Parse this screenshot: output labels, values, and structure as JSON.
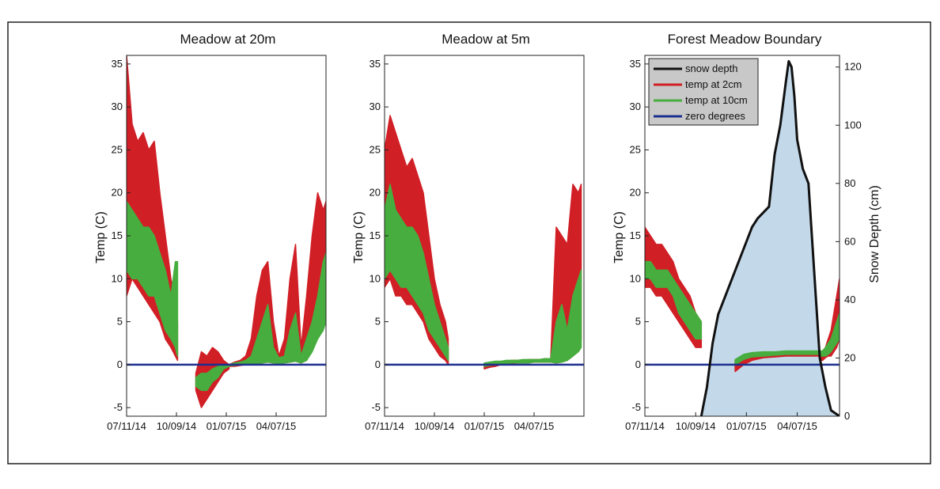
{
  "colors": {
    "temp_2cm": "#d11f26",
    "temp_10cm": "#47ad3f",
    "zero_degrees": "#1c2f8e",
    "snow_depth": "#111111",
    "snow_fill": "#c3d9ea",
    "legend_bg": "#c8c8c8"
  },
  "chart_data": [
    {
      "type": "line",
      "title": "Meadow at 20m",
      "ylabel": "Temp (C)",
      "xlabel": "",
      "ylim": [
        -6,
        36
      ],
      "y_ticks": [
        -5,
        0,
        5,
        10,
        15,
        20,
        25,
        30,
        35
      ],
      "x_tick_labels": [
        "07/11/14",
        "10/09/14",
        "01/07/15",
        "04/07/15"
      ],
      "x_tick_days": [
        0,
        90,
        180,
        270
      ],
      "x_axis_days": [
        0,
        360
      ],
      "grid": false,
      "series": [
        {
          "name": "temp at 2cm",
          "segments": [
            {
              "x_days": [
                0,
                10,
                20,
                30,
                40,
                50,
                60,
                70,
                80,
                88,
                92
              ],
              "daily_max": [
                36,
                28,
                26,
                27,
                25,
                26,
                20,
                15,
                10,
                7,
                5
              ],
              "daily_min": [
                8,
                10,
                9,
                8,
                7,
                6,
                5,
                3,
                2,
                1,
                0.5
              ]
            },
            {
              "x_days": [
                125,
                135,
                145,
                155,
                165,
                175,
                185
              ],
              "daily_max": [
                -1,
                1.5,
                1,
                2,
                1.5,
                0.5,
                0
              ],
              "daily_min": [
                -3,
                -5,
                -4,
                -3,
                -2,
                -1,
                -0.5
              ]
            },
            {
              "x_days": [
                185,
                195,
                205,
                215,
                225,
                235,
                245,
                255,
                265,
                275,
                285,
                295,
                305,
                315,
                325,
                335,
                345,
                355,
                360
              ],
              "daily_max": [
                0,
                0.3,
                0.5,
                1,
                3,
                8,
                11,
                12,
                5,
                1,
                3,
                10,
                14,
                2,
                8,
                15,
                20,
                18,
                19
              ],
              "daily_min": [
                -0.2,
                -0.2,
                -0.1,
                0,
                0,
                0,
                0.2,
                0.3,
                0.2,
                0.1,
                0.2,
                0.3,
                0.4,
                0.2,
                0.5,
                2,
                4,
                5,
                6
              ]
            }
          ]
        },
        {
          "name": "temp at 10cm",
          "segments": [
            {
              "x_days": [
                0,
                10,
                20,
                30,
                40,
                50,
                60,
                70,
                80,
                88,
                92
              ],
              "daily_max": [
                19,
                18,
                17,
                16,
                16,
                15,
                13,
                11,
                8,
                12,
                12
              ],
              "daily_min": [
                11,
                10,
                10,
                9,
                8,
                8,
                6,
                4,
                3,
                2,
                1
              ]
            },
            {
              "x_days": [
                125,
                135,
                145,
                155,
                165,
                175,
                185
              ],
              "daily_max": [
                -1.5,
                -1,
                -1,
                -0.5,
                -0.2,
                0,
                0
              ],
              "daily_min": [
                -2.5,
                -3,
                -3,
                -2,
                -1.5,
                -0.5,
                -0.2
              ]
            },
            {
              "x_days": [
                185,
                195,
                205,
                215,
                225,
                235,
                245,
                255,
                265,
                275,
                285,
                295,
                305,
                315,
                325,
                335,
                345,
                355,
                360
              ],
              "daily_max": [
                0,
                0.2,
                0.3,
                0.5,
                1,
                3,
                5,
                7,
                2,
                0.8,
                1,
                4,
                6,
                1,
                3,
                5,
                8,
                12,
                13
              ],
              "daily_min": [
                -0.1,
                -0.1,
                0,
                0,
                0,
                0.1,
                0.2,
                0.3,
                0.2,
                0.1,
                0.2,
                0.3,
                0.4,
                0.2,
                0.5,
                1.5,
                3,
                4,
                5
              ]
            }
          ]
        },
        {
          "name": "zero degrees",
          "y": 0
        }
      ]
    },
    {
      "type": "line",
      "title": "Meadow at 5m",
      "ylabel": "Temp (C)",
      "xlabel": "",
      "ylim": [
        -6,
        36
      ],
      "y_ticks": [
        -5,
        0,
        5,
        10,
        15,
        20,
        25,
        30,
        35
      ],
      "x_tick_labels": [
        "07/11/14",
        "10/09/14",
        "01/07/15",
        "04/07/15"
      ],
      "x_tick_days": [
        0,
        90,
        180,
        270
      ],
      "x_axis_days": [
        0,
        360
      ],
      "grid": false,
      "series": [
        {
          "name": "temp at 2cm",
          "segments": [
            {
              "x_days": [
                0,
                10,
                20,
                30,
                40,
                50,
                60,
                70,
                80,
                90,
                100,
                110,
                115
              ],
              "daily_max": [
                25,
                29,
                27,
                25,
                23,
                24,
                22,
                20,
                15,
                10,
                7,
                5,
                3
              ],
              "daily_min": [
                9,
                10,
                8,
                8,
                7,
                7,
                6,
                5,
                3,
                2,
                1,
                0.5,
                0
              ]
            },
            {
              "x_days": [
                180,
                190,
                200,
                210,
                220,
                230,
                240,
                250,
                260,
                270,
                280,
                290,
                300,
                310,
                320,
                330,
                340,
                350,
                355
              ],
              "daily_max": [
                0,
                0.2,
                0.3,
                0.3,
                0.4,
                0.5,
                0.5,
                0.5,
                0.6,
                0.6,
                0.6,
                0.7,
                0.7,
                16,
                15,
                14,
                21,
                20,
                21
              ],
              "daily_min": [
                -0.5,
                -0.3,
                -0.2,
                0,
                0.1,
                0.1,
                0.2,
                0.2,
                0.2,
                0.3,
                0.3,
                0.3,
                0.3,
                0.2,
                0.3,
                0.5,
                1,
                2,
                3
              ]
            }
          ]
        },
        {
          "name": "temp at 10cm",
          "segments": [
            {
              "x_days": [
                0,
                10,
                20,
                30,
                40,
                50,
                60,
                70,
                80,
                90,
                100,
                110,
                115
              ],
              "daily_max": [
                18,
                21,
                18,
                17,
                16,
                16,
                15,
                13,
                10,
                7,
                5,
                3,
                2
              ],
              "daily_min": [
                10,
                11,
                10,
                9,
                9,
                8,
                7,
                6,
                4,
                3,
                2,
                1,
                0.5
              ]
            },
            {
              "x_days": [
                180,
                190,
                200,
                210,
                220,
                230,
                240,
                250,
                260,
                270,
                280,
                290,
                300,
                310,
                320,
                330,
                340,
                350,
                355
              ],
              "daily_max": [
                0.2,
                0.3,
                0.4,
                0.4,
                0.5,
                0.5,
                0.5,
                0.6,
                0.6,
                0.6,
                0.6,
                0.7,
                0.7,
                5,
                7,
                4,
                8,
                10,
                11
              ],
              "daily_min": [
                -0.2,
                -0.1,
                0,
                0.1,
                0.1,
                0.2,
                0.2,
                0.2,
                0.2,
                0.3,
                0.3,
                0.3,
                0.3,
                0.2,
                0.3,
                0.5,
                1,
                1.5,
                2
              ]
            }
          ]
        },
        {
          "name": "zero degrees",
          "y": 0
        }
      ]
    },
    {
      "type": "line",
      "title": "Forest Meadow Boundary",
      "ylabel": "Temp (C)",
      "y2label": "Snow Depth (cm)",
      "xlabel": "",
      "ylim": [
        -6,
        36
      ],
      "y2lim": [
        0,
        124
      ],
      "y_ticks": [
        -5,
        0,
        5,
        10,
        15,
        20,
        25,
        30,
        35
      ],
      "y2_ticks": [
        0,
        20,
        40,
        60,
        80,
        100,
        120
      ],
      "x_tick_labels": [
        "07/11/14",
        "10/09/14",
        "01/07/15",
        "04/07/15"
      ],
      "x_tick_days": [
        0,
        90,
        180,
        270
      ],
      "x_axis_days": [
        0,
        345
      ],
      "grid": false,
      "legend": {
        "position": "top-left",
        "entries": [
          "snow depth",
          "temp at 2cm",
          "temp at 10cm",
          "zero degrees"
        ]
      },
      "series": [
        {
          "name": "snow depth",
          "axis": "right",
          "x_days": [
            100,
            110,
            120,
            130,
            140,
            150,
            160,
            170,
            180,
            190,
            200,
            210,
            220,
            230,
            240,
            250,
            255,
            260,
            265,
            270,
            280,
            290,
            300,
            310,
            320,
            330,
            345
          ],
          "values": [
            0,
            10,
            25,
            35,
            40,
            45,
            50,
            55,
            60,
            65,
            68,
            70,
            72,
            90,
            100,
            115,
            122,
            120,
            110,
            95,
            85,
            80,
            50,
            20,
            10,
            2,
            0
          ]
        },
        {
          "name": "temp at 2cm",
          "segments": [
            {
              "x_days": [
                0,
                10,
                20,
                30,
                40,
                50,
                60,
                70,
                80,
                90,
                100
              ],
              "daily_max": [
                16,
                15,
                14,
                14,
                13,
                12,
                10,
                9,
                8,
                6,
                5
              ],
              "daily_min": [
                9,
                9,
                8,
                8,
                7,
                6,
                5,
                4,
                3,
                2,
                2
              ]
            },
            {
              "x_days": [
                160,
                175,
                190,
                210,
                230,
                250,
                270,
                290,
                300,
                310
              ],
              "daily_max": [
                0.5,
                0.8,
                0.9,
                1.2,
                1.2,
                1.4,
                1.4,
                1.4,
                1.4,
                1.5
              ],
              "daily_min": [
                -0.8,
                0,
                0.5,
                0.8,
                0.9,
                1.0,
                1.0,
                1.0,
                1.0,
                1.0
              ]
            },
            {
              "x_days": [
                310,
                315,
                320,
                325,
                330,
                335,
                340,
                345
              ],
              "daily_max": [
                1.5,
                1.5,
                2,
                3,
                4,
                6,
                8,
                10
              ],
              "daily_min": [
                0.5,
                0.5,
                0.8,
                1,
                1,
                1.5,
                2,
                3
              ]
            }
          ]
        },
        {
          "name": "temp at 10cm",
          "segments": [
            {
              "x_days": [
                0,
                10,
                20,
                30,
                40,
                50,
                60,
                70,
                80,
                90,
                100
              ],
              "daily_max": [
                12,
                12,
                11,
                11,
                11,
                10,
                9,
                8,
                7,
                6,
                5
              ],
              "daily_min": [
                10,
                10,
                9,
                9,
                9,
                8,
                6,
                5,
                4,
                3,
                3
              ]
            },
            {
              "x_days": [
                160,
                175,
                190,
                210,
                230,
                250,
                270,
                290,
                300,
                310
              ],
              "daily_max": [
                0.6,
                1.2,
                1.4,
                1.5,
                1.5,
                1.6,
                1.6,
                1.6,
                1.6,
                1.6
              ],
              "daily_min": [
                0,
                0.6,
                0.9,
                1.0,
                1.1,
                1.2,
                1.2,
                1.2,
                1.2,
                1.2
              ]
            },
            {
              "x_days": [
                310,
                315,
                320,
                325,
                330,
                335,
                340,
                345
              ],
              "daily_max": [
                1.6,
                1.6,
                2,
                2.5,
                3,
                4,
                5,
                6
              ],
              "daily_min": [
                1,
                1,
                1,
                1.2,
                1.5,
                2,
                2.5,
                3
              ]
            }
          ]
        },
        {
          "name": "zero degrees",
          "y": 0
        }
      ]
    }
  ]
}
